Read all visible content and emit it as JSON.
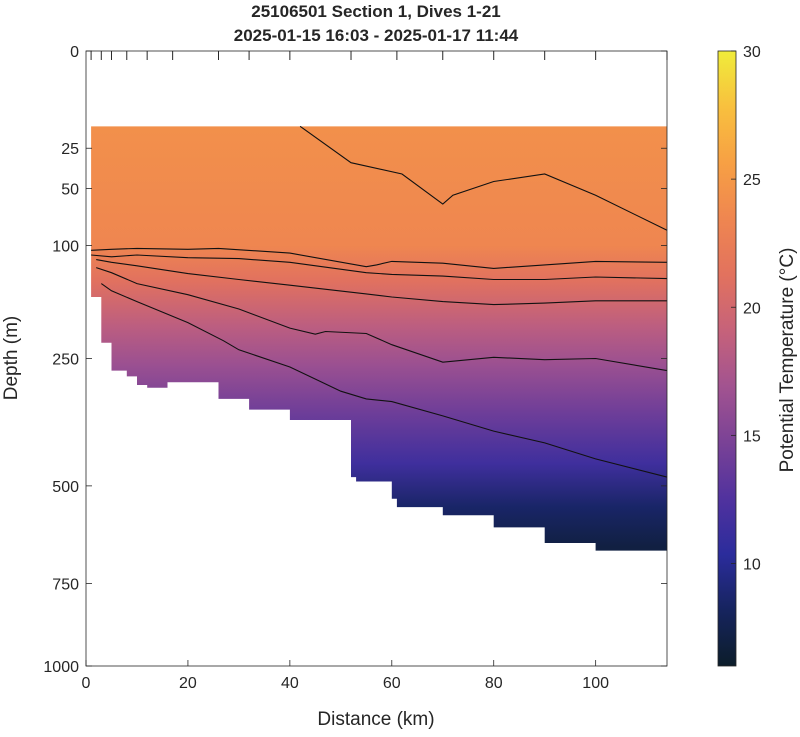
{
  "chart_data": {
    "type": "heatmap",
    "title": [
      "25106501 Section 1, Dives 1-21",
      "2025-01-15 16:03 - 2025-01-17 11:44"
    ],
    "xlabel": "Distance (km)",
    "ylabel": "Depth (m)",
    "colorbar_label": "Potential Temperature (°C)",
    "xlim": [
      0,
      114
    ],
    "ylim": [
      0,
      1000
    ],
    "y_scale": "sqrt",
    "x_ticks": [
      0,
      20,
      40,
      60,
      80,
      100
    ],
    "y_ticks": [
      0,
      25,
      50,
      100,
      250,
      500,
      750,
      1000
    ],
    "colorbar_ticks": [
      10,
      15,
      20,
      25,
      30
    ],
    "clim": [
      6,
      30
    ],
    "colormap": [
      "#0c1d2a",
      "#16245e",
      "#2b2c9c",
      "#51329e",
      "#7a4296",
      "#a25390",
      "#c6627a",
      "#e2725e",
      "#ef8650",
      "#f7a044",
      "#f8c03e",
      "#f0ec3a"
    ],
    "grid": false,
    "dive_locations_km": [
      1,
      3,
      5,
      8,
      12,
      17,
      26,
      32,
      40,
      52,
      61,
      70,
      80,
      90,
      100,
      114
    ],
    "bottom_depth": {
      "x": [
        1,
        3,
        5,
        8,
        10,
        12,
        16,
        20,
        26,
        32,
        40,
        52,
        53,
        60,
        61,
        70,
        80,
        90,
        100,
        114
      ],
      "depth": [
        125,
        160,
        225,
        270,
        280,
        295,
        300,
        290,
        290,
        320,
        340,
        360,
        480,
        490,
        530,
        550,
        570,
        600,
        640,
        660
      ]
    },
    "mixed_layer_depth": 15,
    "contours": [
      {
        "level": 25,
        "x": [
          42,
          52,
          62,
          70,
          72,
          80,
          90,
          100,
          114
        ],
        "depth": [
          15,
          33,
          40,
          62,
          55,
          45,
          40,
          55,
          85
        ]
      },
      {
        "level": 23,
        "x": [
          1,
          5,
          10,
          20,
          26,
          40,
          55,
          57,
          60,
          70,
          80,
          90,
          100,
          114
        ],
        "depth": [
          105,
          104,
          103,
          104,
          103,
          108,
          123,
          121,
          117,
          119,
          125,
          121,
          117,
          118
        ]
      },
      {
        "level": 22,
        "x": [
          1,
          5,
          10,
          20,
          30,
          40,
          55,
          60,
          70,
          80,
          90,
          100,
          114
        ],
        "depth": [
          110,
          112,
          110,
          113,
          114,
          118,
          130,
          132,
          134,
          138,
          138,
          135,
          137
        ]
      },
      {
        "level": 21,
        "x": [
          2,
          5,
          10,
          20,
          30,
          40,
          55,
          60,
          70,
          80,
          90,
          100,
          114
        ],
        "depth": [
          115,
          118,
          122,
          131,
          138,
          145,
          156,
          160,
          166,
          170,
          168,
          165,
          165
        ]
      },
      {
        "level": 19,
        "x": [
          2,
          5,
          10,
          20,
          30,
          40,
          45,
          47,
          55,
          60,
          70,
          80,
          90,
          100,
          114
        ],
        "depth": [
          124,
          130,
          143,
          157,
          176,
          203,
          212,
          208,
          211,
          228,
          256,
          248,
          252,
          250,
          270
        ]
      },
      {
        "level": 16,
        "x": [
          3,
          5,
          10,
          20,
          27,
          30,
          40,
          50,
          55,
          60,
          70,
          80,
          90,
          100,
          114
        ],
        "depth": [
          143,
          152,
          166,
          195,
          222,
          236,
          264,
          306,
          320,
          325,
          352,
          382,
          406,
          440,
          480
        ]
      }
    ]
  }
}
